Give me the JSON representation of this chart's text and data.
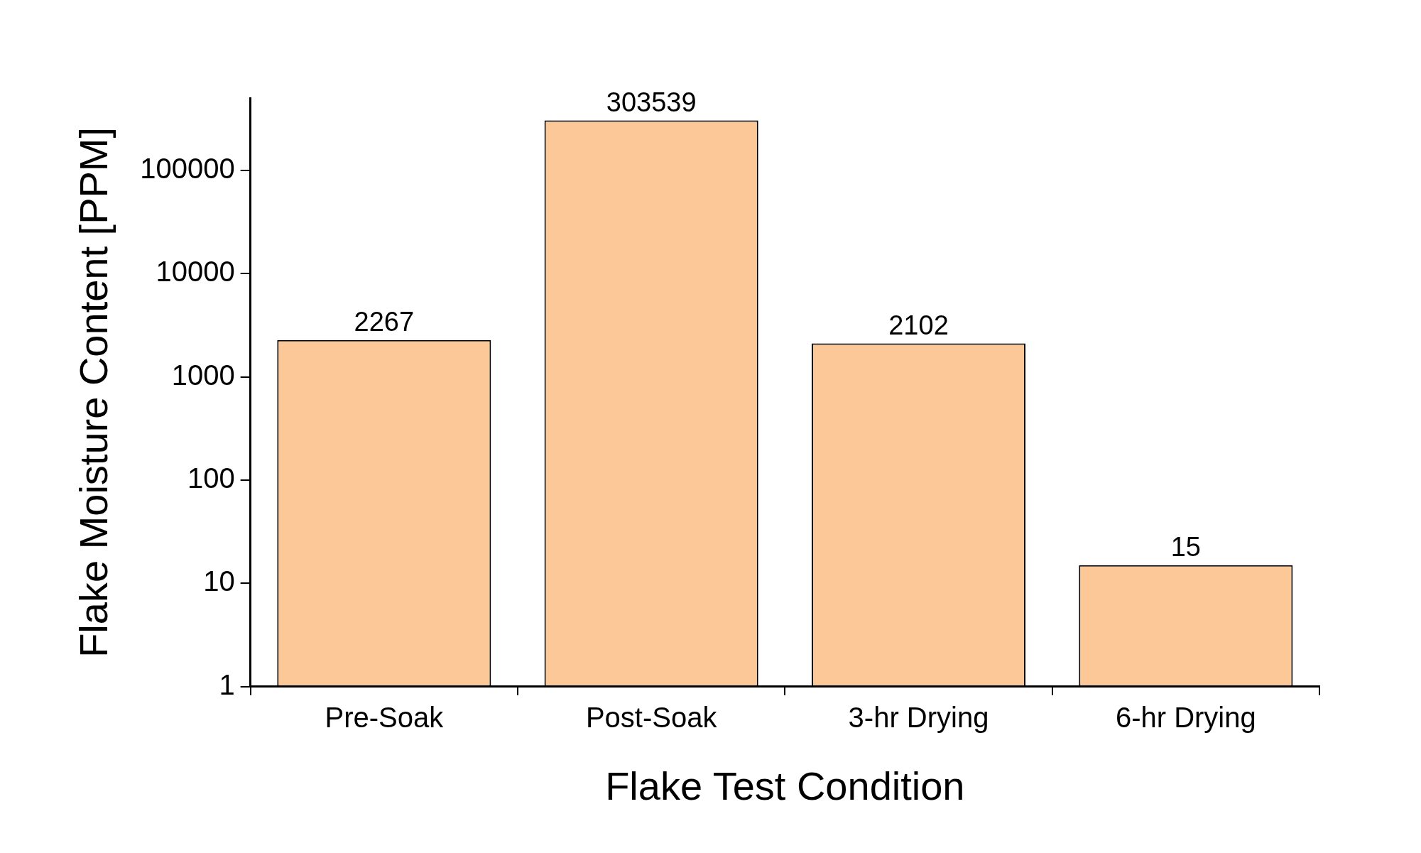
{
  "chart_data": {
    "type": "bar",
    "xlabel": "Flake Test Condition",
    "ylabel": "Flake Moisture Content [PPM]",
    "categories": [
      "Pre-Soak",
      "Post-Soak",
      "3-hr Drying",
      "6-hr Drying"
    ],
    "values": [
      2267,
      303539,
      2102,
      15
    ],
    "color": "#fdc897",
    "log": true,
    "ylim": [
      1,
      500000
    ],
    "yticks": [
      1,
      10,
      100,
      1000,
      10000,
      100000
    ],
    "data_labels": true,
    "grid": false,
    "legend": false
  }
}
